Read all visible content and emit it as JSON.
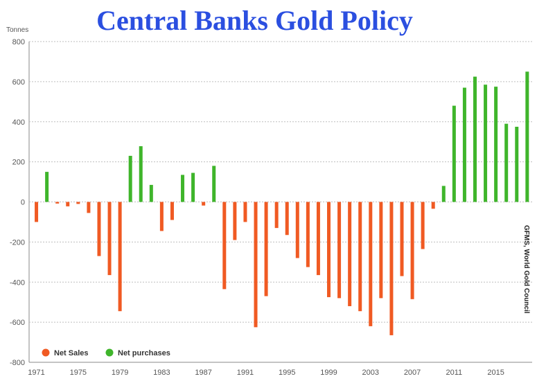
{
  "chart_data": {
    "type": "bar",
    "title": "Central Banks Gold Policy",
    "ylabel": "Tonnes",
    "xlabel": "",
    "ylim": [
      -800,
      800
    ],
    "yticks": [
      800,
      600,
      400,
      200,
      0,
      -200,
      -400,
      -600,
      -800
    ],
    "xticks": [
      "1971",
      "1975",
      "1979",
      "1983",
      "1987",
      "1991",
      "1995",
      "1999",
      "2003",
      "2007",
      "2011",
      "2015"
    ],
    "grid": true,
    "legend_position": "bottom-left",
    "colors": {
      "Net Sales": "#f05a23",
      "Net purchases": "#3fb52b"
    },
    "series": [
      {
        "name": "Net Sales",
        "color": "#f05a23",
        "points": [
          {
            "year": 1971,
            "value": -100
          },
          {
            "year": 1973,
            "value": -8
          },
          {
            "year": 1974,
            "value": -22
          },
          {
            "year": 1975,
            "value": -10
          },
          {
            "year": 1976,
            "value": -55
          },
          {
            "year": 1977,
            "value": -270
          },
          {
            "year": 1978,
            "value": -365
          },
          {
            "year": 1979,
            "value": -545
          },
          {
            "year": 1983,
            "value": -145
          },
          {
            "year": 1984,
            "value": -90
          },
          {
            "year": 1987,
            "value": -18
          },
          {
            "year": 1989,
            "value": -435
          },
          {
            "year": 1990,
            "value": -190
          },
          {
            "year": 1991,
            "value": -100
          },
          {
            "year": 1992,
            "value": -625
          },
          {
            "year": 1993,
            "value": -470
          },
          {
            "year": 1994,
            "value": -130
          },
          {
            "year": 1995,
            "value": -165
          },
          {
            "year": 1996,
            "value": -280
          },
          {
            "year": 1997,
            "value": -325
          },
          {
            "year": 1998,
            "value": -365
          },
          {
            "year": 1999,
            "value": -475
          },
          {
            "year": 2000,
            "value": -480
          },
          {
            "year": 2001,
            "value": -520
          },
          {
            "year": 2002,
            "value": -545
          },
          {
            "year": 2003,
            "value": -620
          },
          {
            "year": 2004,
            "value": -480
          },
          {
            "year": 2005,
            "value": -665
          },
          {
            "year": 2006,
            "value": -370
          },
          {
            "year": 2007,
            "value": -485
          },
          {
            "year": 2008,
            "value": -235
          },
          {
            "year": 2009,
            "value": -34
          }
        ]
      },
      {
        "name": "Net purchases",
        "color": "#3fb52b",
        "points": [
          {
            "year": 1972,
            "value": 150
          },
          {
            "year": 1980,
            "value": 230
          },
          {
            "year": 1981,
            "value": 278
          },
          {
            "year": 1982,
            "value": 85
          },
          {
            "year": 1985,
            "value": 135
          },
          {
            "year": 1986,
            "value": 145
          },
          {
            "year": 1988,
            "value": 180
          },
          {
            "year": 2010,
            "value": 80
          },
          {
            "year": 2011,
            "value": 480
          },
          {
            "year": 2012,
            "value": 570
          },
          {
            "year": 2013,
            "value": 625
          },
          {
            "year": 2014,
            "value": 585
          },
          {
            "year": 2015,
            "value": 575
          },
          {
            "year": 2016,
            "value": 390
          },
          {
            "year": 2017,
            "value": 375
          },
          {
            "year": 2018,
            "value": 650
          }
        ]
      }
    ],
    "legend": [
      {
        "label": "Net Sales",
        "color": "#f05a23"
      },
      {
        "label": "Net purchases",
        "color": "#3fb52b"
      }
    ],
    "source": "GFMS, World Gold Council"
  }
}
